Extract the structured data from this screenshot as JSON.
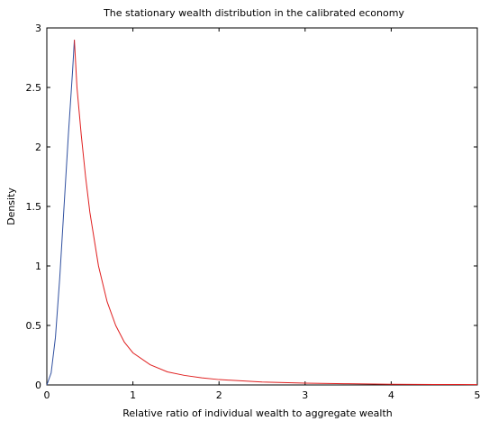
{
  "chart_data": {
    "type": "line",
    "title": "The stationary wealth distribution in the calibrated economy",
    "x_label": "Relative ratio of individual wealth to aggregate wealth",
    "y_label": "Density",
    "series": [
      {
        "color": "#3050a0",
        "x": [
          0,
          0.05,
          0.1,
          0.15,
          0.2,
          0.25,
          0.3,
          0.32
        ],
        "values": [
          0,
          0.1,
          0.4,
          0.9,
          1.5,
          2.1,
          2.65,
          2.9
        ]
      },
      {
        "color": "#e02020",
        "x": [
          0.32,
          0.35,
          0.4,
          0.45,
          0.5,
          0.6,
          0.7,
          0.8,
          0.9,
          1.0,
          1.2,
          1.4,
          1.6,
          1.8,
          2.0,
          2.5,
          3,
          3.5,
          4,
          4.5,
          5
        ],
        "values": [
          2.9,
          2.5,
          2.1,
          1.75,
          1.45,
          1.0,
          0.7,
          0.5,
          0.36,
          0.27,
          0.17,
          0.11,
          0.08,
          0.06,
          0.045,
          0.025,
          0.015,
          0.01,
          0.006,
          0.004,
          0.003
        ]
      }
    ],
    "xlim": [
      0,
      5
    ],
    "ylim": [
      0,
      3
    ],
    "xticks": [
      0,
      1,
      2,
      3,
      4,
      5
    ],
    "yticks": [
      0,
      0.5,
      1,
      1.5,
      2,
      2.5,
      3
    ]
  }
}
